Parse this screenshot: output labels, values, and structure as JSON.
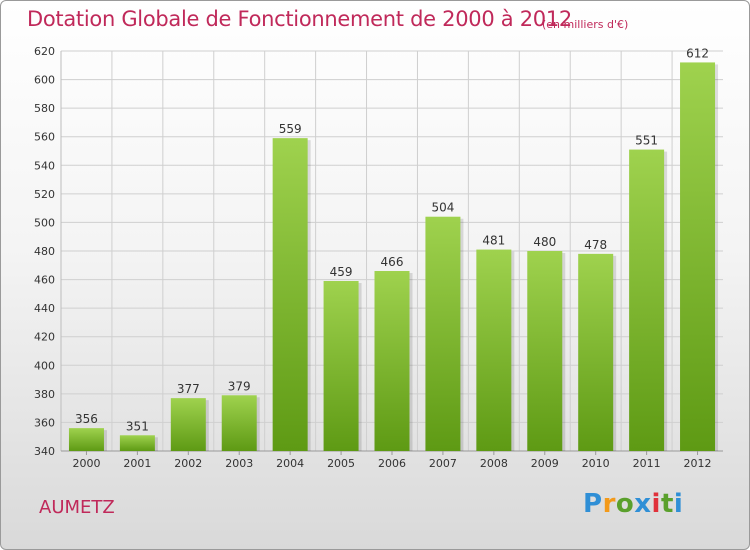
{
  "header": {
    "title": "Dotation Globale de Fonctionnement de 2000 à 2012",
    "unit": "(en milliers d'€)"
  },
  "footer": {
    "commune": "AUMETZ",
    "logo_text": "Proxiti"
  },
  "colors": {
    "title": "#c0295a",
    "bar_light": "#9fd24e",
    "bar_dark": "#5e9a14",
    "grid": "#cfcfcf"
  },
  "chart_data": {
    "type": "bar",
    "title": "Dotation Globale de Fonctionnement de 2000 à 2012",
    "subtitle": "(en milliers d'€)",
    "xlabel": "",
    "ylabel": "",
    "categories": [
      "2000",
      "2001",
      "2002",
      "2003",
      "2004",
      "2005",
      "2006",
      "2007",
      "2008",
      "2009",
      "2010",
      "2011",
      "2012"
    ],
    "values": [
      356,
      351,
      377,
      379,
      559,
      459,
      466,
      504,
      481,
      480,
      478,
      551,
      612
    ],
    "ylim": [
      340,
      620
    ],
    "yticks": [
      340,
      360,
      380,
      400,
      420,
      440,
      460,
      480,
      500,
      520,
      540,
      560,
      580,
      600,
      620
    ],
    "grid": true,
    "legend": "none"
  }
}
